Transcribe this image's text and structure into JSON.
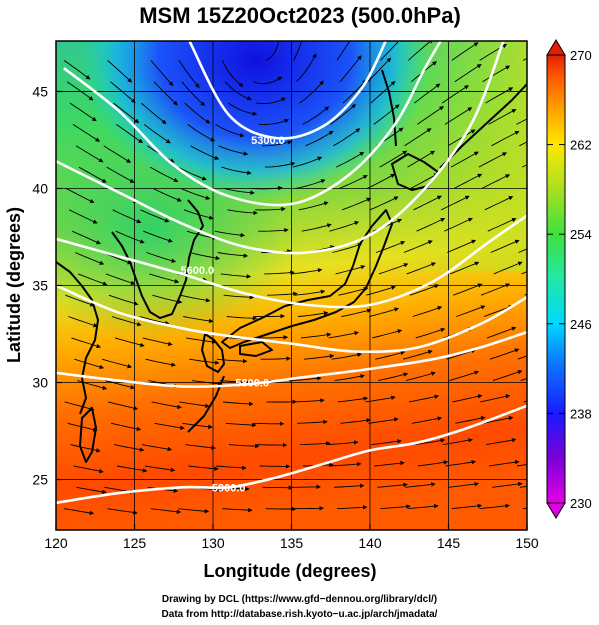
{
  "chart_data": {
    "type": "heatmap",
    "title": "MSM 15Z20Oct2023 (500.0hPa)",
    "xlabel": "Longitude (degrees)",
    "ylabel": "Latitude  (degrees)",
    "xlim": [
      120,
      150
    ],
    "ylim": [
      22.4,
      47.6
    ],
    "x_ticks": [
      "120",
      "125",
      "130",
      "135",
      "140",
      "145",
      "150"
    ],
    "y_ticks": [
      "25",
      "30",
      "35",
      "40",
      "45"
    ],
    "x_tick_values": [
      120,
      125,
      130,
      135,
      140,
      145,
      150
    ],
    "y_tick_values": [
      25,
      30,
      35,
      40,
      45
    ],
    "grid": true,
    "field": "temperature (K) with streamlines",
    "colorbar": {
      "min": 230,
      "max": 270,
      "tick_labels": [
        "230",
        "238",
        "246",
        "254",
        "262",
        "270"
      ],
      "tick_values": [
        230,
        238,
        246,
        254,
        262,
        270
      ],
      "placement": "right"
    },
    "contour_labels": [
      {
        "text": "5300.0",
        "lon": 133.5,
        "lat": 42.5
      },
      {
        "text": "5600.0",
        "lon": 129.0,
        "lat": 35.8
      },
      {
        "text": "5800.0",
        "lon": 132.5,
        "lat": 30.0
      },
      {
        "text": "5900.0",
        "lon": 131.0,
        "lat": 24.6
      }
    ],
    "contours": [
      {
        "level": 5300,
        "points": [
          [
            128.5,
            47.6
          ],
          [
            131,
            43.8
          ],
          [
            134,
            42.6
          ],
          [
            137,
            43.2
          ],
          [
            139.5,
            45.2
          ],
          [
            141,
            47.6
          ]
        ]
      },
      {
        "level": 5400,
        "points": [
          [
            120.5,
            46.2
          ],
          [
            124,
            44
          ],
          [
            127.5,
            41.2
          ],
          [
            131,
            39.6
          ],
          [
            135,
            39.2
          ],
          [
            138.5,
            40.6
          ],
          [
            141.5,
            43.2
          ],
          [
            143.5,
            46.2
          ],
          [
            144.5,
            47.6
          ]
        ]
      },
      {
        "level": 5500,
        "points": [
          [
            120,
            41.4
          ],
          [
            124,
            39.8
          ],
          [
            128,
            38.2
          ],
          [
            132,
            37
          ],
          [
            136,
            36.7
          ],
          [
            140,
            37.6
          ],
          [
            143.5,
            40
          ],
          [
            146.5,
            43.4
          ],
          [
            148.5,
            47.6
          ]
        ]
      },
      {
        "level": 5600,
        "points": [
          [
            120,
            37.4
          ],
          [
            124,
            36.5
          ],
          [
            128,
            35.6
          ],
          [
            132,
            34.6
          ],
          [
            136,
            34
          ],
          [
            140,
            34
          ],
          [
            144,
            35.2
          ],
          [
            147.5,
            37.2
          ],
          [
            150,
            38.6
          ]
        ]
      },
      {
        "level": 5700,
        "points": [
          [
            120,
            35
          ],
          [
            124,
            33.6
          ],
          [
            128,
            32.8
          ],
          [
            131,
            32.4
          ],
          [
            135,
            32
          ],
          [
            139,
            31.6
          ],
          [
            143,
            31.8
          ],
          [
            147,
            33
          ],
          [
            150,
            34.4
          ]
        ]
      },
      {
        "level": 5800,
        "points": [
          [
            120,
            30.5
          ],
          [
            124,
            30.1
          ],
          [
            128,
            29.8
          ],
          [
            132,
            29.9
          ],
          [
            136,
            30.3
          ],
          [
            140,
            30.7
          ],
          [
            144,
            31.2
          ],
          [
            147,
            31.8
          ],
          [
            150,
            32.6
          ]
        ]
      },
      {
        "level": 5900,
        "points": [
          [
            120,
            23.8
          ],
          [
            124,
            24.3
          ],
          [
            128,
            24.6
          ],
          [
            131,
            24.6
          ],
          [
            134,
            25.1
          ],
          [
            137,
            25.8
          ],
          [
            140,
            26.5
          ],
          [
            143,
            26.9
          ],
          [
            146,
            27.6
          ],
          [
            150,
            28.8
          ]
        ]
      }
    ],
    "temperature_samples": [
      {
        "lon": 134,
        "lat": 45.5,
        "value": 234
      },
      {
        "lon": 128,
        "lat": 43,
        "value": 242
      },
      {
        "lon": 122,
        "lat": 40,
        "value": 252
      },
      {
        "lon": 128,
        "lat": 36,
        "value": 255
      },
      {
        "lon": 140,
        "lat": 38,
        "value": 254
      },
      {
        "lon": 146,
        "lat": 43,
        "value": 257
      },
      {
        "lon": 147,
        "lat": 37,
        "value": 261
      },
      {
        "lon": 126,
        "lat": 31,
        "value": 262
      },
      {
        "lon": 138,
        "lat": 29,
        "value": 265
      },
      {
        "lon": 130,
        "lat": 26,
        "value": 266
      },
      {
        "lon": 146,
        "lat": 25,
        "value": 265
      }
    ]
  },
  "credits": {
    "line1": "Drawing by DCL (https://www.gfd−dennou.org/library/dcl/)",
    "line2": "Data from http://database.rish.kyoto−u.ac.jp/arch/jmadata/"
  },
  "colors": {
    "palette": [
      "#e400e4",
      "#7a00d8",
      "#1a1aff",
      "#0a7fff",
      "#00d8ff",
      "#20e8a8",
      "#3fe03f",
      "#a8e020",
      "#ffe800",
      "#ffa000",
      "#ff5a00",
      "#e02000"
    ],
    "land_outline": "#000000",
    "contour": "#ffffff",
    "streamline": "#000000"
  }
}
